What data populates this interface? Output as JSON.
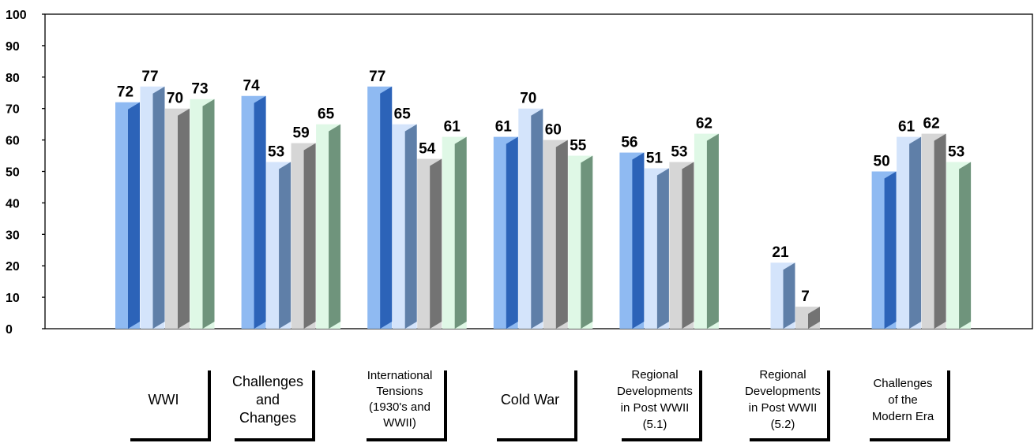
{
  "chart_data": {
    "type": "bar",
    "categories": [
      "WWI",
      "Challenges and Changes",
      "International Tensions (1930's and WWII)",
      "Cold War",
      "Regional Developments in Post WWII (5.1)",
      "Regional Developments in Post WWII (5.2)",
      "Challenges of the Modern Era"
    ],
    "category_lines": [
      [
        "WWI"
      ],
      [
        "Challenges",
        "and",
        "Changes"
      ],
      [
        "International",
        "Tensions",
        "(1930's and",
        "WWII)"
      ],
      [
        "Cold War"
      ],
      [
        "Regional",
        "Developments",
        "in Post WWII",
        "(5.1)"
      ],
      [
        "Regional",
        "Developments",
        "in Post WWII",
        "(5.2)"
      ],
      [
        "Challenges",
        "of the",
        "Modern Era"
      ]
    ],
    "series": [
      {
        "values": [
          72,
          74,
          77,
          61,
          56,
          null,
          50
        ],
        "color": "#8fbaf2"
      },
      {
        "values": [
          77,
          53,
          65,
          70,
          51,
          21,
          61
        ],
        "color": "#d4e4fb"
      },
      {
        "values": [
          70,
          59,
          54,
          60,
          53,
          7,
          62
        ],
        "color": "#d6d6d6"
      },
      {
        "values": [
          73,
          65,
          61,
          55,
          62,
          null,
          53
        ],
        "color": "#dff8e6"
      }
    ],
    "ylim": [
      0,
      100
    ],
    "yticks": [
      0,
      10,
      20,
      30,
      40,
      50,
      60,
      70,
      80,
      90,
      100
    ],
    "data_labels": true,
    "grid": false,
    "legend": "none",
    "title": "",
    "xlabel": "",
    "ylabel": ""
  }
}
